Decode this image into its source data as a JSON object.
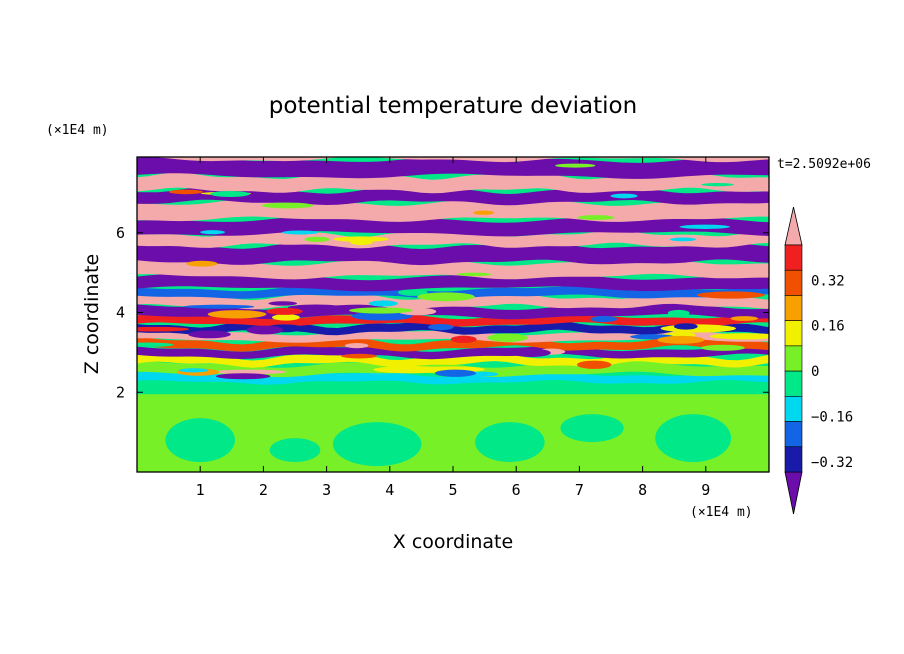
{
  "chart_data": {
    "type": "heatmap",
    "title": "potential temperature deviation",
    "xlabel": "X coordinate",
    "ylabel": "Z coordinate",
    "x_unit": "(×1E4 m)",
    "y_unit": "(×1E4 m)",
    "time_label": "t=2.5092e+06",
    "xlim": [
      0,
      10
    ],
    "ylim": [
      0,
      7.9
    ],
    "x_ticks": [
      1,
      2,
      3,
      4,
      5,
      6,
      7,
      8,
      9
    ],
    "y_ticks": [
      2,
      4,
      6
    ],
    "colorbar": {
      "levels": [
        -0.4,
        -0.32,
        -0.24,
        -0.16,
        -0.08,
        0,
        0.08,
        0.16,
        0.24,
        0.32,
        0.4
      ],
      "labeled_ticks": [
        0.32,
        0.16,
        0,
        -0.16,
        -0.32
      ],
      "colors": [
        "#6a0daa",
        "#1a1aaa",
        "#1464e6",
        "#00d8f0",
        "#00e888",
        "#78f028",
        "#f0f000",
        "#f8a000",
        "#f05000",
        "#f02020",
        "#f4aaaa"
      ],
      "extend": "both"
    },
    "description_of_field": "layered horizontal stripes above z≈2.3 alternating between pink (>0.4) and purple (<-0.4); turbulent mixing zone z≈2.5–4.5; near-uniform green (≈0) below z≈2"
  }
}
